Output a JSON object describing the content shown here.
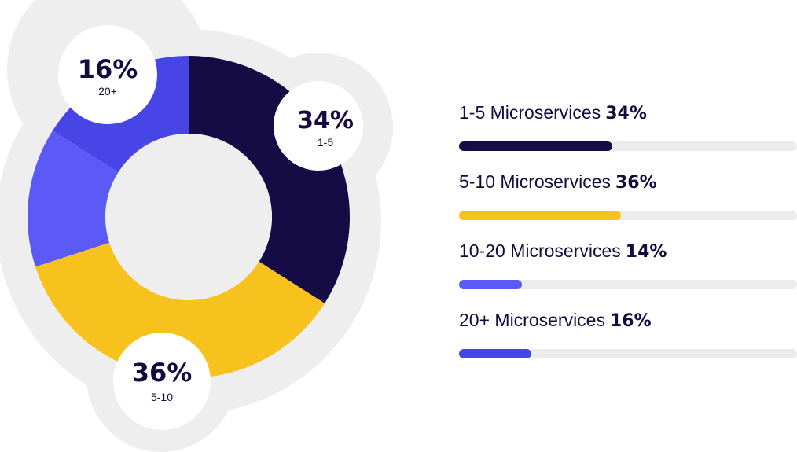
{
  "chart_data": {
    "type": "pie",
    "categories": [
      "1-5",
      "5-10",
      "10-20",
      "20+"
    ],
    "values": [
      34,
      36,
      14,
      16
    ],
    "colors": [
      "#150b45",
      "#f8c21e",
      "#5b5af7",
      "#4845e6"
    ],
    "bubbles": [
      {
        "pct": "34%",
        "label": "1-5"
      },
      {
        "pct": "36%",
        "label": "5-10"
      },
      {
        "pct": "16%",
        "label": "20+"
      }
    ],
    "legend": [
      {
        "label": "1-5 Microservices",
        "pct": "34%",
        "value": 34
      },
      {
        "label": "5-10 Microservices",
        "pct": "36%",
        "value": 36
      },
      {
        "label": "10-20 Microservices",
        "pct": "14%",
        "value": 14
      },
      {
        "label": "20+ Microservices",
        "pct": "16%",
        "value": 16
      }
    ]
  }
}
